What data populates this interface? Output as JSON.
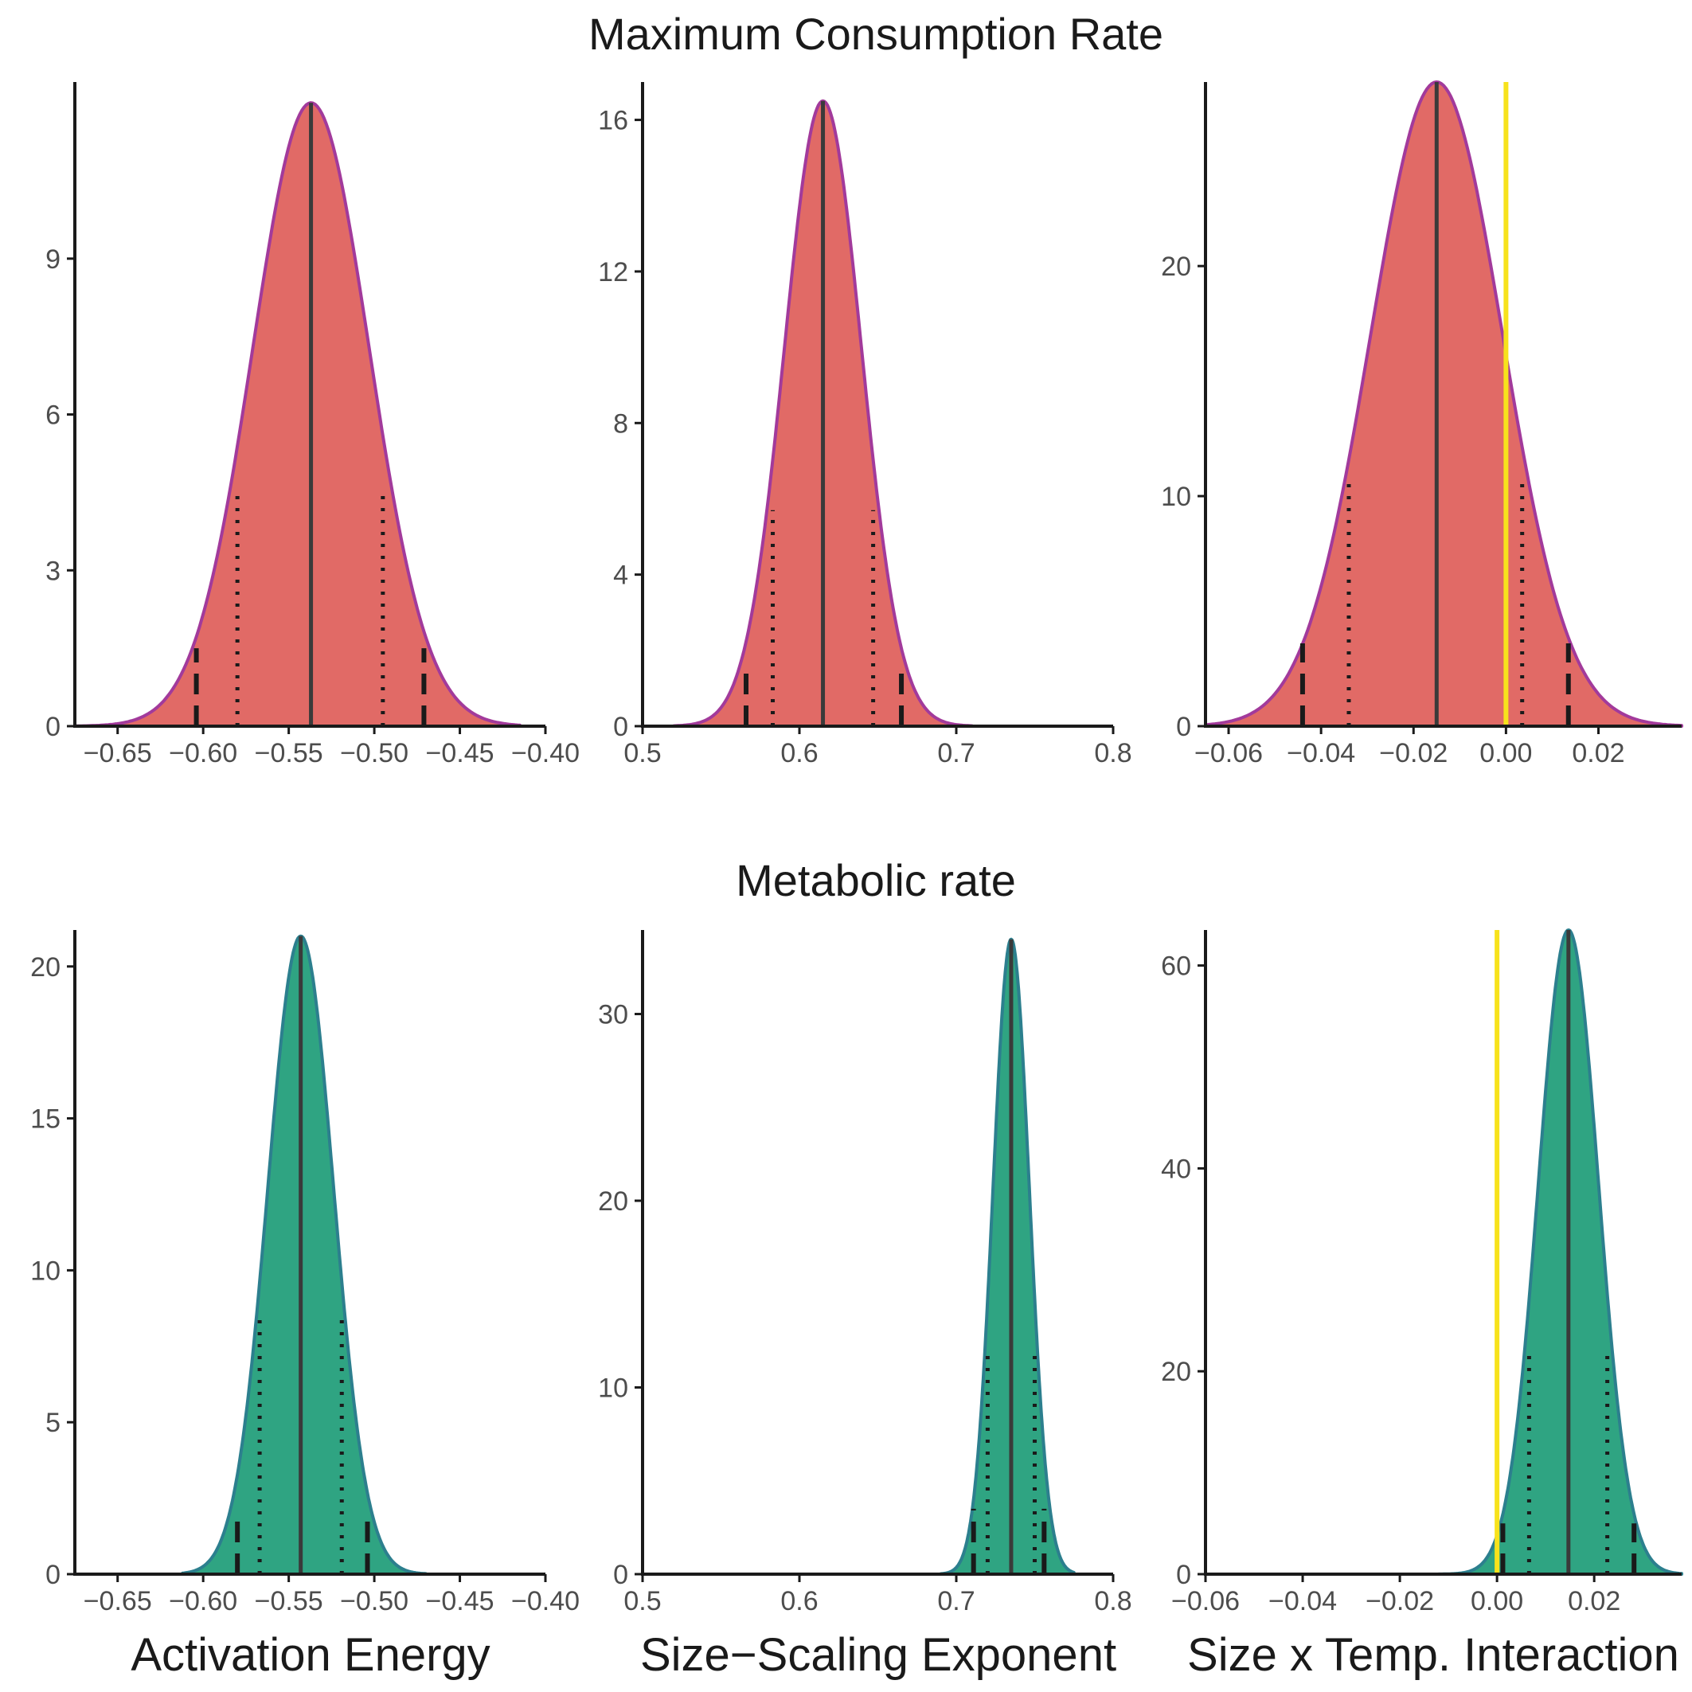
{
  "figure": {
    "row_titles": [
      "Maximum Consumption Rate",
      "Metabolic rate"
    ],
    "xlabels": [
      "Activation Energy",
      "Size−Scaling Exponent",
      "Size x Temp. Interaction"
    ]
  },
  "colors": {
    "consumption_fill": "#E16A66",
    "consumption_line": "#A23A9B",
    "metabolic_fill": "#2FA482",
    "metabolic_line": "#2C7F8E",
    "median_line": "#3a3a3a",
    "interval_marks": "#1a1a1a",
    "zero_line": "#F7E21C",
    "axis": "#1a1a1a",
    "tick_text": "#4d4d4d"
  },
  "chart_data": [
    {
      "type": "area",
      "row": 0,
      "col": 0,
      "panel": "Maximum Consumption Rate",
      "series": [
        {
          "name": "",
          "mean": -0.537,
          "sd": 0.034,
          "peak": 12.0
        }
      ],
      "xlim": [
        -0.675,
        -0.4
      ],
      "ylim": [
        0,
        12.4
      ],
      "x_start": -0.675,
      "x_end": -0.415,
      "xticks": [
        -0.65,
        -0.6,
        -0.55,
        -0.5,
        -0.45,
        -0.4
      ],
      "xtick_labels": [
        "−0.65",
        "−0.60",
        "−0.55",
        "−0.50",
        "−0.45",
        "−0.40"
      ],
      "yticks": [
        0,
        3,
        6,
        9
      ],
      "ytick_labels": [
        "0",
        "3",
        "6",
        "9"
      ],
      "median": -0.537,
      "dotted": [
        {
          "x": -0.58,
          "height": 4.5
        },
        {
          "x": -0.495,
          "height": 4.5
        }
      ],
      "dashed": [
        {
          "x": -0.604,
          "height": 1.5
        },
        {
          "x": -0.471,
          "height": 1.5
        }
      ],
      "zero_line": null,
      "grid": false
    },
    {
      "type": "area",
      "row": 0,
      "col": 1,
      "panel": "Maximum Consumption Rate",
      "series": [
        {
          "name": "",
          "mean": 0.615,
          "sd": 0.0245,
          "peak": 16.5
        }
      ],
      "xlim": [
        0.5,
        0.8
      ],
      "ylim": [
        0,
        17.0
      ],
      "x_start": 0.52,
      "x_end": 0.71,
      "xticks": [
        0.5,
        0.6,
        0.7,
        0.8
      ],
      "xtick_labels": [
        "0.5",
        "0.6",
        "0.7",
        "0.8"
      ],
      "yticks": [
        0,
        4,
        8,
        12,
        16
      ],
      "ytick_labels": [
        "0",
        "4",
        "8",
        "12",
        "16"
      ],
      "median": 0.615,
      "dotted": [
        {
          "x": 0.583,
          "height": 5.7
        },
        {
          "x": 0.647,
          "height": 5.7
        }
      ],
      "dashed": [
        {
          "x": 0.566,
          "height": 1.5
        },
        {
          "x": 0.665,
          "height": 1.5
        }
      ],
      "zero_line": null,
      "grid": false
    },
    {
      "type": "area",
      "row": 0,
      "col": 2,
      "panel": "Maximum Consumption Rate",
      "series": [
        {
          "name": "",
          "mean": -0.015,
          "sd": 0.0143,
          "peak": 28.0
        }
      ],
      "xlim": [
        -0.065,
        0.038
      ],
      "ylim": [
        0,
        28.0
      ],
      "x_start": -0.065,
      "x_end": 0.038,
      "xticks": [
        -0.06,
        -0.04,
        -0.02,
        0.0,
        0.02
      ],
      "xtick_labels": [
        "−0.06",
        "−0.04",
        "−0.02",
        "0.00",
        "0.02"
      ],
      "yticks": [
        0,
        10,
        20
      ],
      "ytick_labels": [
        "0",
        "10",
        "20"
      ],
      "median": -0.015,
      "dotted": [
        {
          "x": -0.034,
          "height": 10.7
        },
        {
          "x": 0.0035,
          "height": 10.7
        }
      ],
      "dashed": [
        {
          "x": -0.044,
          "height": 3.6
        },
        {
          "x": 0.0135,
          "height": 3.6
        }
      ],
      "zero_line": 0.0,
      "grid": false
    },
    {
      "type": "area",
      "row": 1,
      "col": 0,
      "panel": "Metabolic rate",
      "series": [
        {
          "name": "",
          "mean": -0.543,
          "sd": 0.0192,
          "peak": 21.0
        }
      ],
      "xlim": [
        -0.675,
        -0.4
      ],
      "ylim": [
        0,
        21.2
      ],
      "x_start": -0.612,
      "x_end": -0.47,
      "xticks": [
        -0.65,
        -0.6,
        -0.55,
        -0.5,
        -0.45,
        -0.4
      ],
      "xtick_labels": [
        "−0.65",
        "−0.60",
        "−0.55",
        "−0.50",
        "−0.45",
        "−0.40"
      ],
      "yticks": [
        0,
        5,
        10,
        15,
        20
      ],
      "ytick_labels": [
        "0",
        "5",
        "10",
        "15",
        "20"
      ],
      "median": -0.543,
      "dotted": [
        {
          "x": -0.567,
          "height": 8.6
        },
        {
          "x": -0.519,
          "height": 8.6
        }
      ],
      "dashed": [
        {
          "x": -0.58,
          "height": 2.0
        },
        {
          "x": -0.504,
          "height": 2.0
        }
      ],
      "zero_line": null,
      "grid": false
    },
    {
      "type": "area",
      "row": 1,
      "col": 1,
      "panel": "Metabolic rate",
      "series": [
        {
          "name": "",
          "mean": 0.735,
          "sd": 0.0116,
          "peak": 34.0
        }
      ],
      "xlim": [
        0.5,
        0.8
      ],
      "ylim": [
        0,
        34.5
      ],
      "x_start": 0.69,
      "x_end": 0.775,
      "xticks": [
        0.5,
        0.6,
        0.7,
        0.8
      ],
      "xtick_labels": [
        "0.5",
        "0.6",
        "0.7",
        "0.8"
      ],
      "yticks": [
        0,
        10,
        20,
        30
      ],
      "ytick_labels": [
        "0",
        "10",
        "20",
        "30"
      ],
      "median": 0.735,
      "dotted": [
        {
          "x": 0.72,
          "height": 12.0
        },
        {
          "x": 0.75,
          "height": 12.0
        }
      ],
      "dashed": [
        {
          "x": 0.711,
          "height": 3.5
        },
        {
          "x": 0.756,
          "height": 3.5
        }
      ],
      "zero_line": null,
      "grid": false
    },
    {
      "type": "area",
      "row": 1,
      "col": 2,
      "panel": "Metabolic rate",
      "series": [
        {
          "name": "",
          "mean": 0.0147,
          "sd": 0.0062,
          "peak": 63.5
        }
      ],
      "xlim": [
        -0.06,
        0.038
      ],
      "ylim": [
        0,
        63.5
      ],
      "x_start": -0.012,
      "x_end": 0.038,
      "xticks": [
        -0.06,
        -0.04,
        -0.02,
        0.0,
        0.02
      ],
      "xtick_labels": [
        "−0.06",
        "−0.04",
        "−0.02",
        "0.00",
        "0.02"
      ],
      "yticks": [
        0,
        20,
        40,
        60
      ],
      "ytick_labels": [
        "0",
        "20",
        "40",
        "60"
      ],
      "median": 0.0147,
      "dotted": [
        {
          "x": 0.0066,
          "height": 22.0
        },
        {
          "x": 0.0227,
          "height": 22.0
        }
      ],
      "dashed": [
        {
          "x": 0.0012,
          "height": 5.0
        },
        {
          "x": 0.0282,
          "height": 5.0
        }
      ],
      "zero_line": 0.0,
      "grid": false
    }
  ]
}
